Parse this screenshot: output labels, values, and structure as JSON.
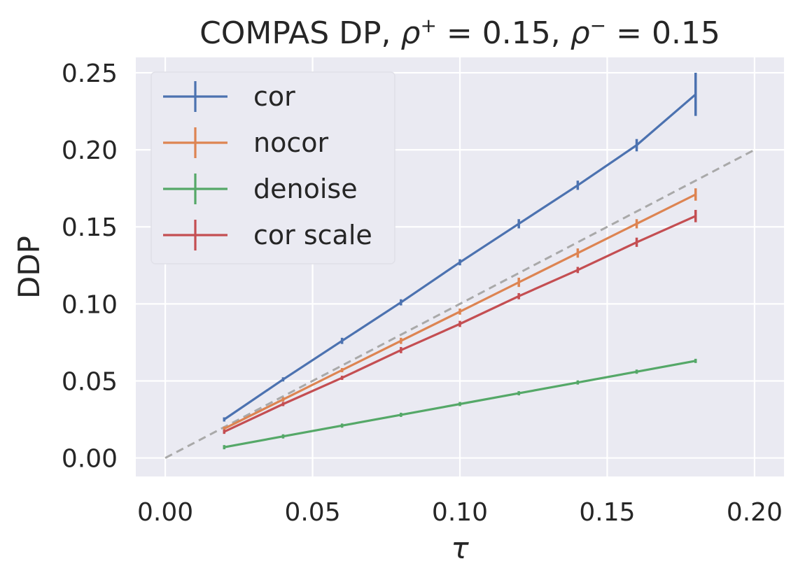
{
  "chart_data": {
    "type": "line",
    "title": "COMPAS DP, ρ⁺ = 0.15, ρ⁻ = 0.15",
    "xlabel": "τ",
    "ylabel": "DDP",
    "xlim": [
      -0.01,
      0.21
    ],
    "ylim": [
      -0.012,
      0.26
    ],
    "xticks": [
      0.0,
      0.05,
      0.1,
      0.15,
      0.2
    ],
    "xtick_labels": [
      "0.00",
      "0.05",
      "0.10",
      "0.15",
      "0.20"
    ],
    "yticks": [
      0.0,
      0.05,
      0.1,
      0.15,
      0.2,
      0.25
    ],
    "ytick_labels": [
      "0.00",
      "0.05",
      "0.10",
      "0.15",
      "0.20",
      "0.25"
    ],
    "grid": true,
    "legend_position": "top-left",
    "background": "#eaeaf2",
    "x": [
      0.02,
      0.04,
      0.06,
      0.08,
      0.1,
      0.12,
      0.14,
      0.16,
      0.18
    ],
    "series": [
      {
        "name": "cor",
        "color": "#4c72b0",
        "values": [
          0.025,
          0.051,
          0.076,
          0.101,
          0.127,
          0.152,
          0.177,
          0.203,
          0.236
        ],
        "errors": [
          0.001,
          0.001,
          0.002,
          0.002,
          0.002,
          0.003,
          0.003,
          0.004,
          0.014
        ]
      },
      {
        "name": "nocor",
        "color": "#dd8452",
        "values": [
          0.019,
          0.038,
          0.057,
          0.076,
          0.095,
          0.114,
          0.133,
          0.152,
          0.171
        ],
        "errors": [
          0.001,
          0.001,
          0.001,
          0.002,
          0.002,
          0.003,
          0.003,
          0.003,
          0.004
        ]
      },
      {
        "name": "denoise",
        "color": "#55a868",
        "values": [
          0.007,
          0.014,
          0.021,
          0.028,
          0.035,
          0.042,
          0.049,
          0.056,
          0.063
        ],
        "errors": [
          0.0005,
          0.0005,
          0.0005,
          0.0005,
          0.0005,
          0.0005,
          0.0005,
          0.0005,
          0.0005
        ]
      },
      {
        "name": "cor scale",
        "color": "#c44e52",
        "values": [
          0.017,
          0.035,
          0.052,
          0.07,
          0.087,
          0.105,
          0.122,
          0.14,
          0.157
        ],
        "errors": [
          0.001,
          0.001,
          0.001,
          0.002,
          0.002,
          0.002,
          0.002,
          0.003,
          0.004
        ]
      }
    ],
    "reference_line": {
      "x": [
        0.0,
        0.2
      ],
      "y": [
        0.0,
        0.2
      ],
      "color": "#a9a9a9",
      "style": "dashed"
    }
  }
}
